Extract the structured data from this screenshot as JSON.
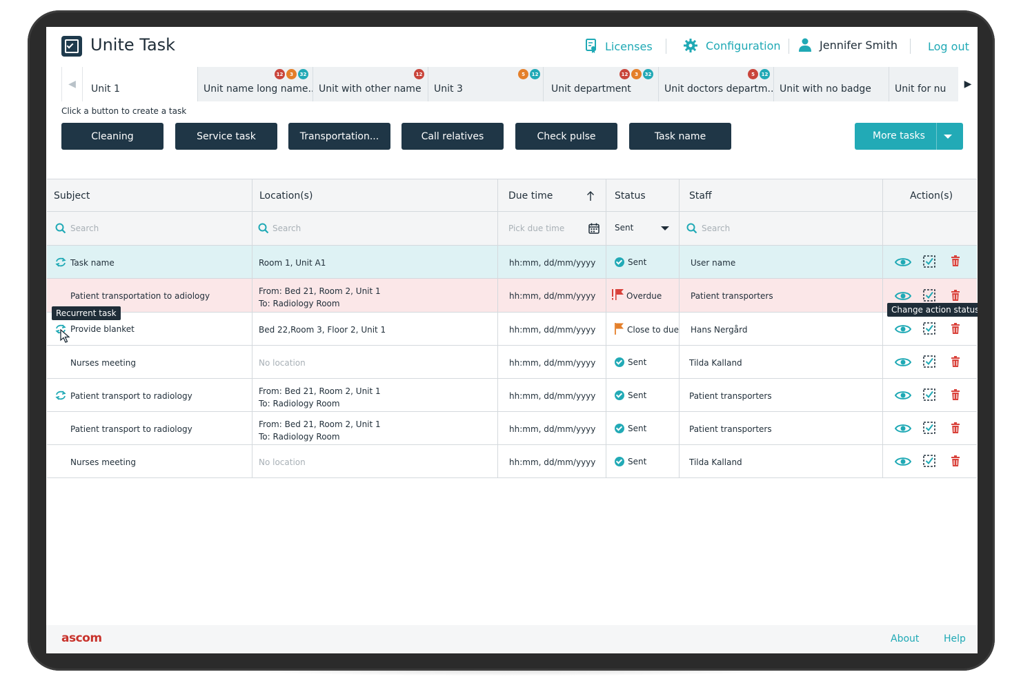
{
  "app": {
    "title": "Unite Task"
  },
  "header": {
    "licenses": "Licenses",
    "configuration": "Configuration",
    "user": "Jennifer Smith",
    "logout": "Log out"
  },
  "tabs": [
    {
      "label": "Unit 1",
      "active": true,
      "badges": []
    },
    {
      "label": "Unit name long name...",
      "badges": [
        {
          "value": "12",
          "color": "red"
        },
        {
          "value": "3",
          "color": "orange"
        },
        {
          "value": "32",
          "color": "teal"
        }
      ]
    },
    {
      "label": "Unit with other name",
      "badges": [
        {
          "value": "12",
          "color": "red"
        }
      ]
    },
    {
      "label": "Unit 3",
      "badges": [
        {
          "value": "5",
          "color": "orange"
        },
        {
          "value": "12",
          "color": "teal"
        }
      ]
    },
    {
      "label": "Unit department",
      "badges": [
        {
          "value": "12",
          "color": "red"
        },
        {
          "value": "3",
          "color": "orange"
        },
        {
          "value": "32",
          "color": "teal"
        }
      ]
    },
    {
      "label": "Unit doctors departm...",
      "badges": [
        {
          "value": "5",
          "color": "red"
        },
        {
          "value": "12",
          "color": "teal"
        }
      ]
    },
    {
      "label": "Unit with no badge",
      "badges": []
    },
    {
      "label": "Unit for nu",
      "badges": []
    }
  ],
  "hint": "Click a button to create a task",
  "task_buttons": [
    "Cleaning",
    "Service task",
    "Transportation...",
    "Call relatives",
    "Check pulse",
    "Task name"
  ],
  "more_tasks": "More tasks",
  "table": {
    "columns": [
      "Subject",
      "Location(s)",
      "Due time",
      "Status",
      "Staff",
      "Action(s)"
    ],
    "filters": {
      "subject_placeholder": "Search",
      "location_placeholder": "Search",
      "due_placeholder": "Pick due time",
      "status_selected": "Sent",
      "staff_placeholder": "Search"
    },
    "rows": [
      {
        "subject": "Task name",
        "recurrent": true,
        "location": [
          "Room 1, Unit A1"
        ],
        "due": "hh:mm, dd/mm/yyyy",
        "status": "Sent",
        "status_kind": "sent",
        "staff": "User name",
        "state": "selected"
      },
      {
        "subject": "Patient transportation to adiology",
        "recurrent": false,
        "location": [
          "From: Bed 21, Room 2, Unit 1",
          "To: Radiology Room"
        ],
        "due": "hh:mm, dd/mm/yyyy",
        "status": "Overdue",
        "status_kind": "overdue",
        "staff": "Patient transporters",
        "state": "alert"
      },
      {
        "subject": "Provide blanket",
        "recurrent": true,
        "location": [
          "Bed 22,Room 3, Floor 2, Unit 1"
        ],
        "due": "hh:mm, dd/mm/yyyy",
        "status": "Close to due",
        "status_kind": "close",
        "staff": "Hans Nergård",
        "state": "normal"
      },
      {
        "subject": "Nurses meeting",
        "recurrent": false,
        "location": [
          "No location"
        ],
        "location_muted": true,
        "due": "hh:mm, dd/mm/yyyy",
        "status": "Sent",
        "status_kind": "sent",
        "staff": "Tilda Kalland",
        "state": "normal"
      },
      {
        "subject": "Patient transport to radiology",
        "recurrent": true,
        "location": [
          "From: Bed 21, Room 2, Unit 1",
          "To: Radiology Room"
        ],
        "due": "hh:mm, dd/mm/yyyy",
        "status": "Sent",
        "status_kind": "sent",
        "staff": "Patient transporters",
        "state": "normal"
      },
      {
        "subject": "Patient transport to radiology",
        "recurrent": false,
        "location": [
          "From: Bed 21, Room 2, Unit 1",
          "To: Radiology Room"
        ],
        "due": "hh:mm, dd/mm/yyyy",
        "status": "Sent",
        "status_kind": "sent",
        "staff": "Patient transporters",
        "state": "normal"
      },
      {
        "subject": "Nurses meeting",
        "recurrent": false,
        "location": [
          "No location"
        ],
        "location_muted": true,
        "due": "hh:mm, dd/mm/yyyy",
        "status": "Sent",
        "status_kind": "sent",
        "staff": "Tilda Kalland",
        "state": "normal"
      }
    ]
  },
  "tooltips": {
    "recurrent": "Recurrent task",
    "change_status": "Change action status"
  },
  "footer": {
    "brand": "ascom",
    "about": "About",
    "help": "Help"
  },
  "colors": {
    "accent": "#22aab6",
    "dark_button": "#1f3646",
    "selected_row": "#def2f4",
    "alert_row": "#fbe7e8",
    "danger": "#d9413a",
    "warning": "#e47f2a"
  }
}
